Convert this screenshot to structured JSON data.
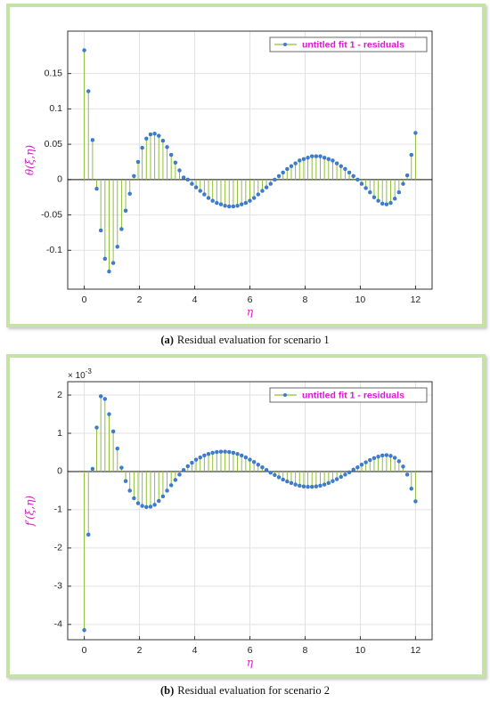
{
  "chart_data": [
    {
      "type": "stem",
      "y_label": "θ(ξ,η)",
      "x_label": "η",
      "caption_label": "(a)",
      "caption": "Residual evaluation for scenario 1",
      "legend": "upper right",
      "grid": true,
      "xlim": [
        -0.6,
        12.6
      ],
      "xticks": [
        0,
        2,
        4,
        6,
        8,
        10,
        12
      ],
      "ylim": [
        -0.155,
        0.21
      ],
      "yticks": [
        -0.1,
        -0.05,
        0,
        0.05,
        0.1,
        0.15
      ],
      "x": [
        0,
        0.15,
        0.3,
        0.45,
        0.6,
        0.75,
        0.9,
        1.05,
        1.2,
        1.35,
        1.5,
        1.65,
        1.8,
        1.95,
        2.1,
        2.25,
        2.4,
        2.55,
        2.7,
        2.85,
        3,
        3.15,
        3.3,
        3.45,
        3.6,
        3.75,
        3.9,
        4.05,
        4.2,
        4.35,
        4.5,
        4.65,
        4.8,
        4.95,
        5.1,
        5.25,
        5.4,
        5.55,
        5.7,
        5.85,
        6,
        6.15,
        6.3,
        6.45,
        6.6,
        6.75,
        6.9,
        7.05,
        7.2,
        7.35,
        7.5,
        7.65,
        7.8,
        7.95,
        8.1,
        8.25,
        8.4,
        8.55,
        8.7,
        8.85,
        9,
        9.15,
        9.3,
        9.45,
        9.6,
        9.75,
        9.9,
        10.05,
        10.2,
        10.35,
        10.5,
        10.65,
        10.8,
        10.95,
        11.1,
        11.25,
        11.4,
        11.55,
        11.7,
        11.85,
        12
      ],
      "series": [
        {
          "name": "untitled fit 1 - residuals",
          "color": "#8fbf3a",
          "marker_color": "#3a7fd6",
          "values": [
            0.183,
            0.125,
            0.056,
            -0.013,
            -0.072,
            -0.112,
            -0.13,
            -0.118,
            -0.095,
            -0.07,
            -0.044,
            -0.02,
            0.005,
            0.025,
            0.045,
            0.058,
            0.064,
            0.065,
            0.062,
            0.055,
            0.046,
            0.035,
            0.024,
            0.013,
            0.003,
            0,
            -0.006,
            -0.011,
            -0.016,
            -0.021,
            -0.026,
            -0.03,
            -0.033,
            -0.035,
            -0.037,
            -0.038,
            -0.038,
            -0.037,
            -0.035,
            -0.033,
            -0.03,
            -0.026,
            -0.021,
            -0.016,
            -0.011,
            -0.006,
            0,
            0.005,
            0.01,
            0.015,
            0.019,
            0.023,
            0.027,
            0.029,
            0.031,
            0.033,
            0.033,
            0.033,
            0.031,
            0.029,
            0.027,
            0.023,
            0.019,
            0.015,
            0.01,
            0.005,
            0,
            -0.006,
            -0.012,
            -0.018,
            -0.025,
            -0.03,
            -0.034,
            -0.035,
            -0.033,
            -0.027,
            -0.018,
            -0.006,
            0.006,
            0.035,
            0.066
          ]
        }
      ]
    },
    {
      "type": "stem",
      "y_label": "f′(ξ,η)",
      "x_label": "η",
      "y_scale_base": "× 10",
      "y_scale_exp": "-3",
      "caption_label": "(b)",
      "caption": "Residual evaluation for scenario 2",
      "legend": "upper right",
      "grid": true,
      "xlim": [
        -0.6,
        12.6
      ],
      "xticks": [
        0,
        2,
        4,
        6,
        8,
        10,
        12
      ],
      "ylim": [
        -4.4,
        2.35
      ],
      "yticks": [
        -4,
        -3,
        -2,
        -1,
        0,
        1,
        2
      ],
      "x": [
        0,
        0.15,
        0.3,
        0.45,
        0.6,
        0.75,
        0.9,
        1.05,
        1.2,
        1.35,
        1.5,
        1.65,
        1.8,
        1.95,
        2.1,
        2.25,
        2.4,
        2.55,
        2.7,
        2.85,
        3,
        3.15,
        3.3,
        3.45,
        3.6,
        3.75,
        3.9,
        4.05,
        4.2,
        4.35,
        4.5,
        4.65,
        4.8,
        4.95,
        5.1,
        5.25,
        5.4,
        5.55,
        5.7,
        5.85,
        6,
        6.15,
        6.3,
        6.45,
        6.6,
        6.75,
        6.9,
        7.05,
        7.2,
        7.35,
        7.5,
        7.65,
        7.8,
        7.95,
        8.1,
        8.25,
        8.4,
        8.55,
        8.7,
        8.85,
        9,
        9.15,
        9.3,
        9.45,
        9.6,
        9.75,
        9.9,
        10.05,
        10.2,
        10.35,
        10.5,
        10.65,
        10.8,
        10.95,
        11.1,
        11.25,
        11.4,
        11.55,
        11.7,
        11.85,
        12
      ],
      "series": [
        {
          "name": "untitled fit 1 - residuals",
          "color": "#8fbf3a",
          "marker_color": "#3a7fd6",
          "values": [
            -4.15,
            -1.65,
            0.07,
            1.15,
            1.97,
            1.9,
            1.5,
            1.05,
            0.6,
            0.1,
            -0.25,
            -0.5,
            -0.7,
            -0.83,
            -0.9,
            -0.93,
            -0.92,
            -0.87,
            -0.77,
            -0.65,
            -0.5,
            -0.36,
            -0.22,
            -0.08,
            0.04,
            0.14,
            0.23,
            0.31,
            0.37,
            0.42,
            0.46,
            0.49,
            0.51,
            0.52,
            0.52,
            0.51,
            0.49,
            0.46,
            0.42,
            0.37,
            0.31,
            0.25,
            0.18,
            0.11,
            0.04,
            -0.03,
            -0.09,
            -0.15,
            -0.21,
            -0.26,
            -0.3,
            -0.34,
            -0.37,
            -0.39,
            -0.4,
            -0.4,
            -0.39,
            -0.37,
            -0.34,
            -0.3,
            -0.25,
            -0.2,
            -0.14,
            -0.08,
            -0.02,
            0.05,
            0.11,
            0.18,
            0.24,
            0.3,
            0.35,
            0.39,
            0.42,
            0.43,
            0.41,
            0.36,
            0.27,
            0.13,
            -0.08,
            -0.45,
            -0.78
          ]
        }
      ]
    }
  ]
}
